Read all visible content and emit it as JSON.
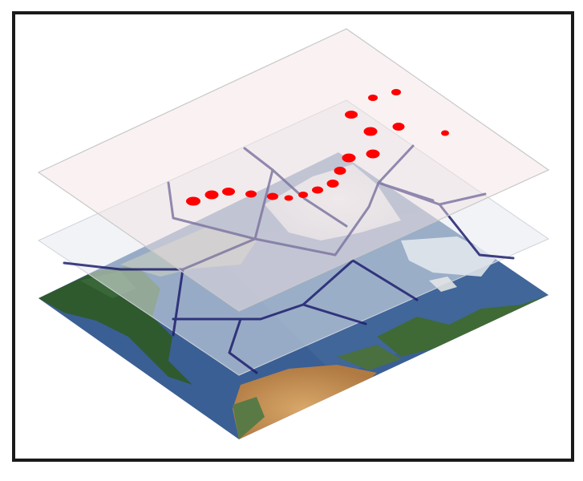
{
  "figure": {
    "layers": [
      {
        "id": "basemap",
        "kind": "satellite-map"
      },
      {
        "id": "boundaries",
        "kind": "polygon-network",
        "stroke": "#1f1f6e"
      },
      {
        "id": "points",
        "kind": "point-markers",
        "fill": "#ff0000"
      }
    ],
    "colors": {
      "frame": "#1a1a1a",
      "ocean": "#3a5f95",
      "land_green": "#2f5a2e",
      "desert": "#c99a5e",
      "ice": "#dfe6ee",
      "boundary_line": "#1f1f6e",
      "points": "#ff0000",
      "top_plane_fill": "#f5e3e3"
    }
  }
}
